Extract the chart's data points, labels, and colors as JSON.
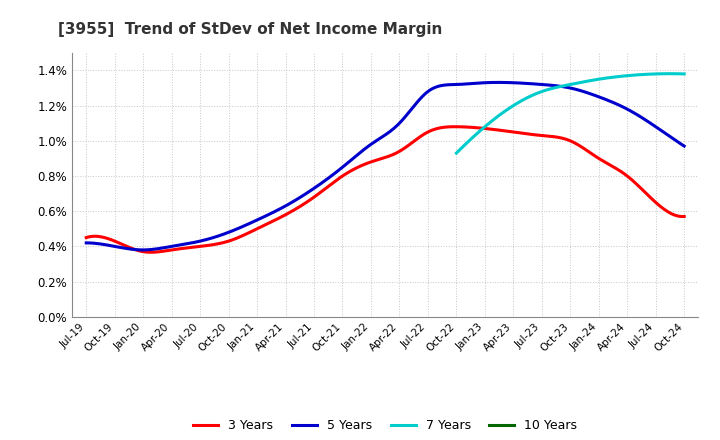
{
  "title": "[3955]  Trend of StDev of Net Income Margin",
  "background_color": "#ffffff",
  "grid_color": "#c8c8c8",
  "ylim": [
    0.0,
    0.015
  ],
  "yticks": [
    0.0,
    0.002,
    0.004,
    0.006,
    0.008,
    0.01,
    0.012,
    0.014
  ],
  "ytick_labels": [
    "0.0%",
    "0.2%",
    "0.4%",
    "0.6%",
    "0.8%",
    "1.0%",
    "1.2%",
    "1.4%"
  ],
  "lines": {
    "3 Years": {
      "color": "#ff0000",
      "values": [
        0.0045,
        0.0043,
        0.0037,
        0.0038,
        0.004,
        0.0043,
        0.005,
        0.0058,
        0.0068,
        0.008,
        0.0088,
        0.0094,
        0.0105,
        0.0108,
        0.0107,
        0.0105,
        0.0103,
        0.01,
        0.009,
        0.008,
        0.0065,
        0.0057
      ]
    },
    "5 Years": {
      "color": "#0000cc",
      "values": [
        0.0042,
        0.004,
        0.0038,
        0.004,
        0.0043,
        0.0048,
        0.0055,
        0.0063,
        0.0073,
        0.0085,
        0.0098,
        0.011,
        0.0128,
        0.0132,
        0.0133,
        0.0133,
        0.0132,
        0.013,
        0.0125,
        0.0118,
        0.0108,
        0.0097
      ]
    },
    "7 Years": {
      "color": "#00cccc",
      "values": [
        null,
        null,
        null,
        null,
        null,
        null,
        null,
        null,
        null,
        null,
        null,
        null,
        null,
        0.0093,
        0.0108,
        0.012,
        0.0128,
        0.0132,
        0.0135,
        0.0137,
        0.0138,
        0.0138
      ]
    },
    "10 Years": {
      "color": "#006600",
      "values": [
        null,
        null,
        null,
        null,
        null,
        null,
        null,
        null,
        null,
        null,
        null,
        null,
        null,
        null,
        null,
        null,
        null,
        null,
        null,
        null,
        null,
        null
      ]
    }
  },
  "x_labels": [
    "Jul-19",
    "Oct-19",
    "Jan-20",
    "Apr-20",
    "Jul-20",
    "Oct-20",
    "Jan-21",
    "Apr-21",
    "Jul-21",
    "Oct-21",
    "Jan-22",
    "Apr-22",
    "Jul-22",
    "Oct-22",
    "Jan-23",
    "Apr-23",
    "Jul-23",
    "Oct-23",
    "Jan-24",
    "Apr-24",
    "Jul-24",
    "Oct-24"
  ],
  "legend_labels": [
    "3 Years",
    "5 Years",
    "7 Years",
    "10 Years"
  ],
  "legend_colors": [
    "#ff0000",
    "#0000cc",
    "#00cccc",
    "#006600"
  ],
  "n_points": 22
}
